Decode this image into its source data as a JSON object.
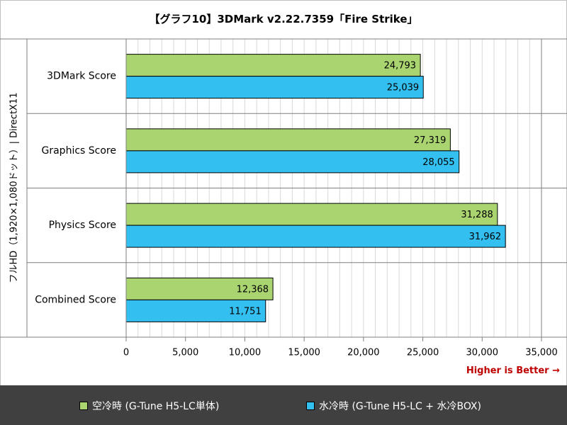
{
  "chart_data": {
    "type": "bar",
    "orientation": "horizontal",
    "title": "【グラフ10】3DMark v2.22.7359「Fire Strike」",
    "ylabel": "フルHD（1,920×1,080ドット）| DirectX11",
    "categories": [
      "3DMark Score",
      "Graphics Score",
      "Physics Score",
      "Combined Score"
    ],
    "series": [
      {
        "name": "空冷時 (G-Tune H5-LC単体)",
        "color": "#a9d46f",
        "values": [
          24793,
          27319,
          31288,
          12368
        ],
        "labels": [
          "24,793",
          "27,319",
          "31,288",
          "12,368"
        ]
      },
      {
        "name": "水冷時 (G-Tune H5-LC + 水冷BOX)",
        "color": "#33bff0",
        "values": [
          25039,
          28055,
          31962,
          11751
        ],
        "labels": [
          "25,039",
          "28,055",
          "31,962",
          "11,751"
        ]
      }
    ],
    "xlim": [
      0,
      35000
    ],
    "xticks": [
      0,
      5000,
      10000,
      15000,
      20000,
      25000,
      30000,
      35000
    ],
    "xtick_labels": [
      "0",
      "5,000",
      "10,000",
      "15,000",
      "20,000",
      "25,000",
      "30,000",
      "35,000"
    ],
    "grid": true,
    "legend_position": "bottom",
    "annotation": "Higher is Better →"
  }
}
